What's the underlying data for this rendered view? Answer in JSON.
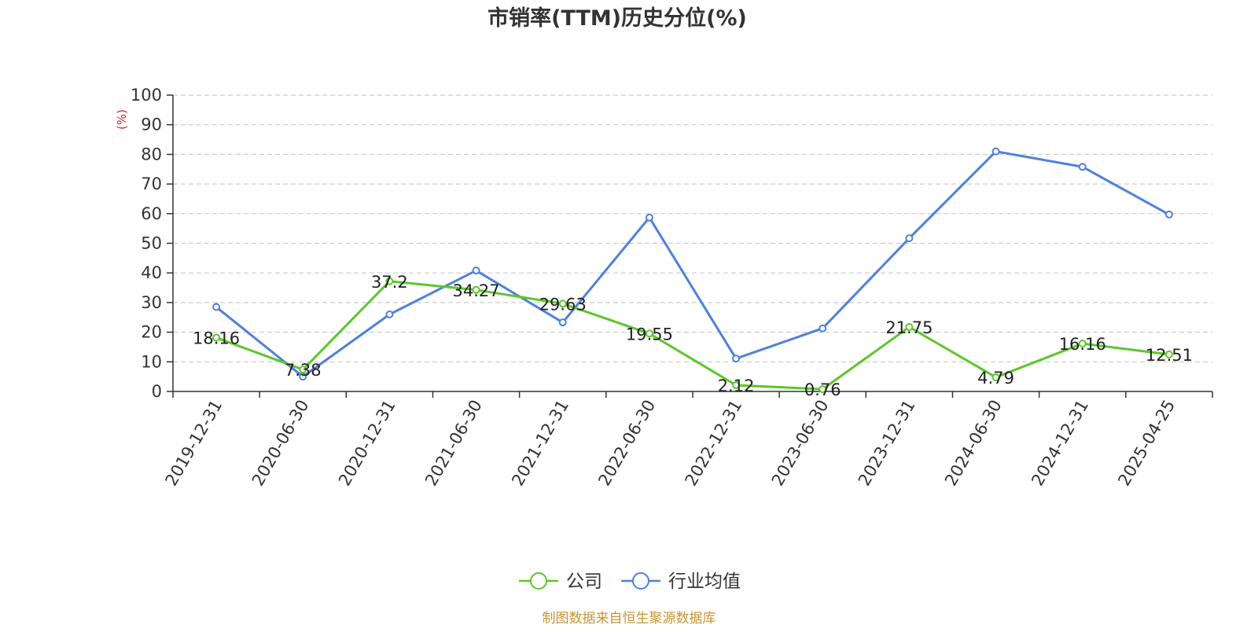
{
  "chart_data": {
    "type": "line",
    "title": "市销率(TTM)历史分位(%)",
    "ylabel": "(%)",
    "xlabel": "",
    "ylim": [
      0,
      100
    ],
    "yticks": [
      0,
      10,
      20,
      30,
      40,
      50,
      60,
      70,
      80,
      90,
      100
    ],
    "grid": true,
    "legend_position": "bottom-center",
    "categories": [
      "2019-12-31",
      "2020-06-30",
      "2020-12-31",
      "2021-06-30",
      "2021-12-31",
      "2022-06-30",
      "2022-12-31",
      "2023-06-30",
      "2023-12-31",
      "2024-06-30",
      "2024-12-31",
      "2025-04-25"
    ],
    "series": [
      {
        "name": "公司",
        "color": "#5cc72a",
        "values": [
          18.16,
          7.38,
          37.2,
          34.27,
          29.63,
          19.55,
          2.12,
          0.76,
          21.75,
          4.79,
          16.16,
          12.51
        ],
        "labels": [
          "18.16",
          "7.38",
          "37.2",
          "34.27",
          "29.63",
          "19.55",
          "2.12",
          "0.76",
          "21.75",
          "4.79",
          "16.16",
          "12.51"
        ]
      },
      {
        "name": "行业均值",
        "color": "#4f80de",
        "values": [
          28.5,
          5.0,
          26.0,
          40.8,
          23.3,
          58.7,
          11.1,
          21.3,
          51.7,
          81.0,
          75.8,
          59.7
        ]
      }
    ],
    "source_note": "制图数据来自恒生聚源数据库",
    "source_color": "#c8962e",
    "ylabel_color": "#e0291b"
  }
}
